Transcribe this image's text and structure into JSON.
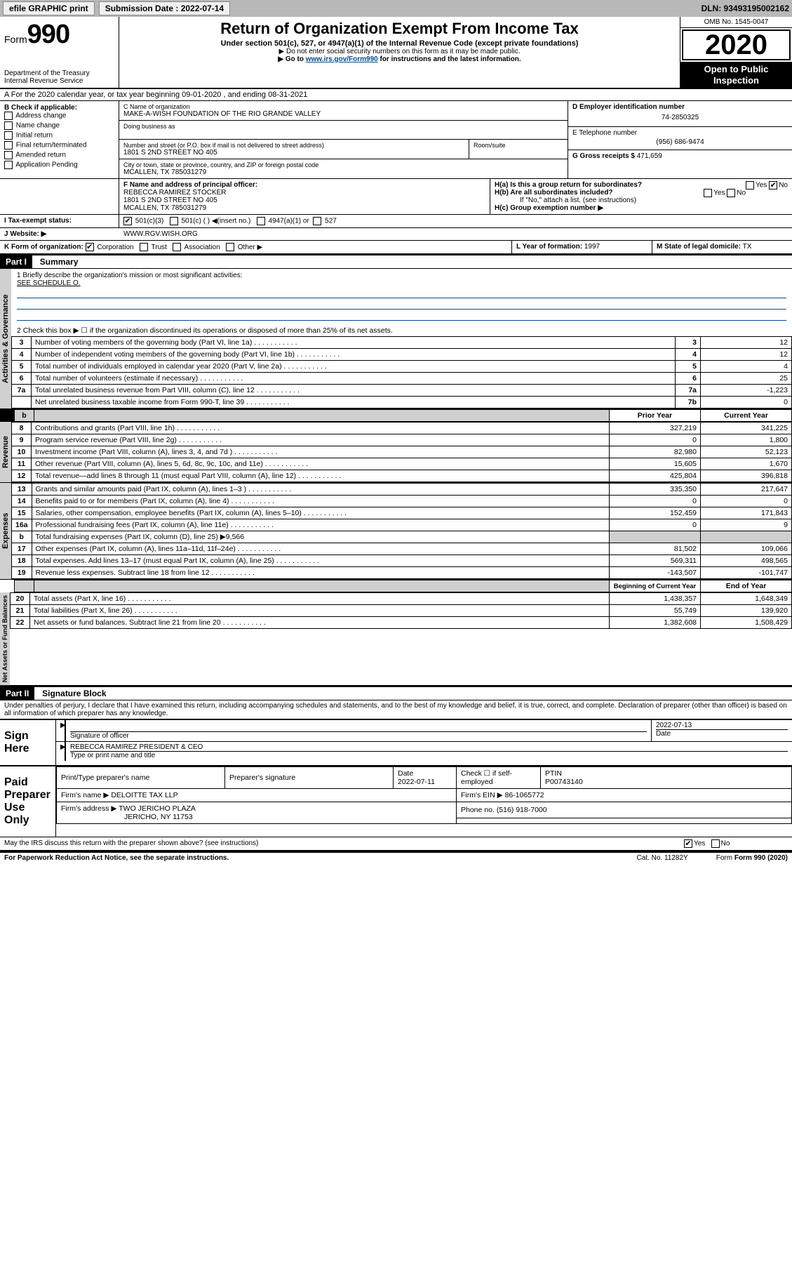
{
  "topbar": {
    "efile_label": "efile GRAPHIC print",
    "submission_label": "Submission Date : 2022-07-14",
    "dln_label": "DLN: 93493195002162"
  },
  "header": {
    "form_label": "Form",
    "form_number": "990",
    "dept": "Department of the Treasury",
    "irs": "Internal Revenue Service",
    "title": "Return of Organization Exempt From Income Tax",
    "subtitle": "Under section 501(c), 527, or 4947(a)(1) of the Internal Revenue Code (except private foundations)",
    "note1": "▶ Do not enter social security numbers on this form as it may be made public.",
    "note2_pre": "▶ Go to ",
    "note2_link": "www.irs.gov/Form990",
    "note2_post": " for instructions and the latest information.",
    "omb": "OMB No. 1545-0047",
    "year": "2020",
    "open_public": "Open to Public Inspection"
  },
  "rowA": "A For the 2020 calendar year, or tax year beginning 09-01-2020    , and ending 08-31-2021",
  "boxB": {
    "title": "B Check if applicable:",
    "items": [
      "Address change",
      "Name change",
      "Initial return",
      "Final return/terminated",
      "Amended return",
      "Application Pending"
    ]
  },
  "boxC": {
    "name_label": "C Name of organization",
    "name": "MAKE-A-WISH FOUNDATION OF THE RIO GRANDE VALLEY",
    "dba_label": "Doing business as",
    "addr_label": "Number and street (or P.O. box if mail is not delivered to street address)",
    "room_label": "Room/suite",
    "addr": "1801 S 2ND STREET NO 405",
    "city_label": "City or town, state or province, country, and ZIP or foreign postal code",
    "city": "MCALLEN, TX  785031279"
  },
  "boxD": {
    "label": "D Employer identification number",
    "value": "74-2850325"
  },
  "boxE": {
    "label": "E Telephone number",
    "value": "(956) 686-9474"
  },
  "boxG": {
    "label": "G Gross receipts $",
    "value": "471,659"
  },
  "boxF": {
    "label": "F  Name and address of principal officer:",
    "name": "REBECCA RAMIREZ STOCKER",
    "addr1": "1801 S 2ND STREET NO 405",
    "addr2": "MCALLEN, TX  785031279"
  },
  "boxH": {
    "a_label": "H(a)  Is this a group return for subordinates?",
    "a_yes": "Yes",
    "a_no": "No",
    "b_label": "H(b)  Are all subordinates included?",
    "b_note": "If \"No,\" attach a list. (see instructions)",
    "c_label": "H(c)  Group exemption number ▶"
  },
  "rowI": {
    "label": "I    Tax-exempt status:",
    "opt1": "501(c)(3)",
    "opt2": "501(c) (  ) ◀(insert no.)",
    "opt3": "4947(a)(1) or",
    "opt4": "527"
  },
  "rowJ": {
    "label": "J    Website: ▶",
    "value": "WWW.RGV.WISH.ORG"
  },
  "rowK": {
    "label": "K Form of organization:",
    "opts": [
      "Corporation",
      "Trust",
      "Association",
      "Other ▶"
    ]
  },
  "rowL": {
    "label": "L Year of formation:",
    "value": "1997"
  },
  "rowM": {
    "label": "M State of legal domicile:",
    "value": "TX"
  },
  "part1": {
    "header": "Part I",
    "title": "Summary",
    "q1": "1  Briefly describe the organization's mission or most significant activities:",
    "q1_val": "SEE SCHEDULE O.",
    "q2": "2      Check this box ▶ ☐  if the organization discontinued its operations or disposed of more than 25% of its net assets.",
    "rows_activities": [
      {
        "n": "3",
        "t": "Number of voting members of the governing body (Part VI, line 1a)",
        "lb": "3",
        "v": "12"
      },
      {
        "n": "4",
        "t": "Number of independent voting members of the governing body (Part VI, line 1b)",
        "lb": "4",
        "v": "12"
      },
      {
        "n": "5",
        "t": "Total number of individuals employed in calendar year 2020 (Part V, line 2a)",
        "lb": "5",
        "v": "4"
      },
      {
        "n": "6",
        "t": "Total number of volunteers (estimate if necessary)",
        "lb": "6",
        "v": "25"
      },
      {
        "n": "7a",
        "t": "Total unrelated business revenue from Part VIII, column (C), line 12",
        "lb": "7a",
        "v": "-1,223"
      },
      {
        "n": "",
        "t": "Net unrelated business taxable income from Form 990-T, line 39",
        "lb": "7b",
        "v": "0"
      }
    ],
    "col_headers": {
      "prior": "Prior Year",
      "current": "Current Year"
    },
    "rows_revenue": [
      {
        "n": "8",
        "t": "Contributions and grants (Part VIII, line 1h)",
        "p": "327,219",
        "c": "341,225"
      },
      {
        "n": "9",
        "t": "Program service revenue (Part VIII, line 2g)",
        "p": "0",
        "c": "1,800"
      },
      {
        "n": "10",
        "t": "Investment income (Part VIII, column (A), lines 3, 4, and 7d )",
        "p": "82,980",
        "c": "52,123"
      },
      {
        "n": "11",
        "t": "Other revenue (Part VIII, column (A), lines 5, 6d, 8c, 9c, 10c, and 11e)",
        "p": "15,605",
        "c": "1,670"
      },
      {
        "n": "12",
        "t": "Total revenue—add lines 8 through 11 (must equal Part VIII, column (A), line 12)",
        "p": "425,804",
        "c": "396,818"
      }
    ],
    "rows_expenses": [
      {
        "n": "13",
        "t": "Grants and similar amounts paid (Part IX, column (A), lines 1–3 )",
        "p": "335,350",
        "c": "217,647"
      },
      {
        "n": "14",
        "t": "Benefits paid to or for members (Part IX, column (A), line 4)",
        "p": "0",
        "c": "0"
      },
      {
        "n": "15",
        "t": "Salaries, other compensation, employee benefits (Part IX, column (A), lines 5–10)",
        "p": "152,459",
        "c": "171,843"
      },
      {
        "n": "16a",
        "t": "Professional fundraising fees (Part IX, column (A), line 11e)",
        "p": "0",
        "c": "9"
      },
      {
        "n": "b",
        "t": "Total fundraising expenses (Part IX, column (D), line 25) ▶9,566",
        "p": "",
        "c": "",
        "shade": true
      },
      {
        "n": "17",
        "t": "Other expenses (Part IX, column (A), lines 11a–11d, 11f–24e)",
        "p": "81,502",
        "c": "109,066"
      },
      {
        "n": "18",
        "t": "Total expenses. Add lines 13–17 (must equal Part IX, column (A), line 25)",
        "p": "569,311",
        "c": "498,565"
      },
      {
        "n": "19",
        "t": "Revenue less expenses. Subtract line 18 from line 12",
        "p": "-143,507",
        "c": "-101,747"
      }
    ],
    "col_headers2": {
      "beg": "Beginning of Current Year",
      "end": "End of Year"
    },
    "rows_net": [
      {
        "n": "20",
        "t": "Total assets (Part X, line 16)",
        "p": "1,438,357",
        "c": "1,648,349"
      },
      {
        "n": "21",
        "t": "Total liabilities (Part X, line 26)",
        "p": "55,749",
        "c": "139,920"
      },
      {
        "n": "22",
        "t": "Net assets or fund balances. Subtract line 21 from line 20",
        "p": "1,382,608",
        "c": "1,508,429"
      }
    ],
    "vlabels": {
      "activities": "Activities & Governance",
      "revenue": "Revenue",
      "expenses": "Expenses",
      "net": "Net Assets or Fund Balances"
    }
  },
  "part2": {
    "header": "Part II",
    "title": "Signature Block",
    "penalty": "Under penalties of perjury, I declare that I have examined this return, including accompanying schedules and statements, and to the best of my knowledge and belief, it is true, correct, and complete. Declaration of preparer (other than officer) is based on all information of which preparer has any knowledge.",
    "sign_here": "Sign Here",
    "sig_officer": "Signature of officer",
    "sig_date": "2022-07-13",
    "date_label": "Date",
    "officer_name": "REBECCA RAMIREZ  PRESIDENT & CEO",
    "type_label": "Type or print name and title",
    "paid_label": "Paid Preparer Use Only",
    "prep_name_label": "Print/Type preparer's name",
    "prep_sig_label": "Preparer's signature",
    "prep_date_label": "Date",
    "prep_date": "2022-07-11",
    "check_self": "Check ☐ if self-employed",
    "ptin_label": "PTIN",
    "ptin": "P00743140",
    "firm_name_label": "Firm's name    ▶",
    "firm_name": "DELOITTE TAX LLP",
    "firm_ein_label": "Firm's EIN ▶",
    "firm_ein": "86-1065772",
    "firm_addr_label": "Firm's address ▶",
    "firm_addr1": "TWO JERICHO PLAZA",
    "firm_addr2": "JERICHO, NY  11753",
    "phone_label": "Phone no.",
    "phone": "(516) 918-7000",
    "discuss": "May the IRS discuss this return with the preparer shown above? (see instructions)",
    "yes": "Yes",
    "no": "No"
  },
  "footer": {
    "paperwork": "For Paperwork Reduction Act Notice, see the separate instructions.",
    "cat": "Cat. No. 11282Y",
    "form": "Form 990 (2020)"
  }
}
